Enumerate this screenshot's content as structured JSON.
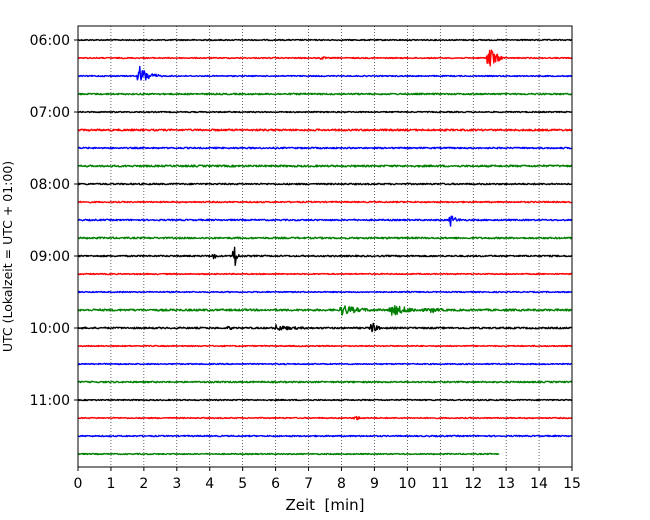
{
  "chart_data": {
    "type": "line",
    "title": "",
    "xlabel": "Zeit  [min]",
    "ylabel": "UTC (Lokalzeit = UTC + 01:00)",
    "xlim": [
      0,
      15
    ],
    "x_ticks": [
      "0",
      "1",
      "2",
      "3",
      "4",
      "5",
      "6",
      "7",
      "8",
      "9",
      "10",
      "11",
      "12",
      "13",
      "14",
      "15"
    ],
    "y_ticks": [
      "06:00",
      "07:00",
      "08:00",
      "09:00",
      "10:00",
      "11:00"
    ],
    "grid": "vertical dotted",
    "trace_interval_minutes": 15,
    "series": [
      {
        "start": "06:00",
        "color": "#000000",
        "noise": 0.35,
        "end_min": 15,
        "events": []
      },
      {
        "start": "06:15",
        "color": "#ff0000",
        "noise": 0.35,
        "end_min": 15,
        "events": [
          {
            "t": 7.4,
            "amp": 1.2,
            "dur": 0.15
          },
          {
            "t": 12.45,
            "amp": 8,
            "dur": 0.5
          }
        ]
      },
      {
        "start": "06:30",
        "color": "#0000ff",
        "noise": 0.35,
        "end_min": 15,
        "events": [
          {
            "t": 1.85,
            "amp": 5,
            "dur": 0.7
          }
        ]
      },
      {
        "start": "06:45",
        "color": "#008000",
        "noise": 0.45,
        "end_min": 15,
        "events": []
      },
      {
        "start": "07:00",
        "color": "#000000",
        "noise": 0.35,
        "end_min": 15,
        "events": []
      },
      {
        "start": "07:15",
        "color": "#ff0000",
        "noise": 0.55,
        "end_min": 15,
        "events": []
      },
      {
        "start": "07:30",
        "color": "#0000ff",
        "noise": 0.45,
        "end_min": 15,
        "events": []
      },
      {
        "start": "07:45",
        "color": "#008000",
        "noise": 0.55,
        "end_min": 15,
        "events": []
      },
      {
        "start": "08:00",
        "color": "#000000",
        "noise": 0.45,
        "end_min": 15,
        "events": []
      },
      {
        "start": "08:15",
        "color": "#ff0000",
        "noise": 0.4,
        "end_min": 15,
        "events": []
      },
      {
        "start": "08:30",
        "color": "#0000ff",
        "noise": 0.45,
        "end_min": 15,
        "events": [
          {
            "t": 11.3,
            "amp": 3,
            "dur": 0.35
          }
        ]
      },
      {
        "start": "08:45",
        "color": "#008000",
        "noise": 0.5,
        "end_min": 15,
        "events": []
      },
      {
        "start": "09:00",
        "color": "#000000",
        "noise": 0.45,
        "end_min": 15,
        "events": [
          {
            "t": 4.1,
            "amp": 2.5,
            "dur": 0.15
          },
          {
            "t": 4.75,
            "amp": 8,
            "dur": 0.15
          }
        ]
      },
      {
        "start": "09:15",
        "color": "#ff0000",
        "noise": 0.35,
        "end_min": 15,
        "events": []
      },
      {
        "start": "09:30",
        "color": "#0000ff",
        "noise": 0.35,
        "end_min": 15,
        "events": []
      },
      {
        "start": "09:45",
        "color": "#008000",
        "noise": 0.6,
        "end_min": 15,
        "events": [
          {
            "t": 8.0,
            "amp": 2.5,
            "dur": 1.0
          },
          {
            "t": 9.5,
            "amp": 2.5,
            "dur": 1.2
          },
          {
            "t": 10.7,
            "amp": 1.2,
            "dur": 0.5
          }
        ]
      },
      {
        "start": "10:00",
        "color": "#000000",
        "noise": 0.5,
        "end_min": 15,
        "events": [
          {
            "t": 4.6,
            "amp": 1.5,
            "dur": 0.1
          },
          {
            "t": 6.0,
            "amp": 1.2,
            "dur": 1.0
          },
          {
            "t": 8.9,
            "amp": 4,
            "dur": 0.3
          }
        ]
      },
      {
        "start": "10:15",
        "color": "#ff0000",
        "noise": 0.35,
        "end_min": 15,
        "events": []
      },
      {
        "start": "10:30",
        "color": "#0000ff",
        "noise": 0.35,
        "end_min": 15,
        "events": []
      },
      {
        "start": "10:45",
        "color": "#008000",
        "noise": 0.45,
        "end_min": 15,
        "events": []
      },
      {
        "start": "11:00",
        "color": "#000000",
        "noise": 0.35,
        "end_min": 15,
        "events": []
      },
      {
        "start": "11:15",
        "color": "#ff0000",
        "noise": 0.35,
        "end_min": 15,
        "events": [
          {
            "t": 8.4,
            "amp": 1.3,
            "dur": 0.3
          }
        ]
      },
      {
        "start": "11:30",
        "color": "#0000ff",
        "noise": 0.4,
        "end_min": 15,
        "events": []
      },
      {
        "start": "11:45",
        "color": "#008000",
        "noise": 0.35,
        "end_min": 12.8,
        "events": []
      }
    ]
  }
}
